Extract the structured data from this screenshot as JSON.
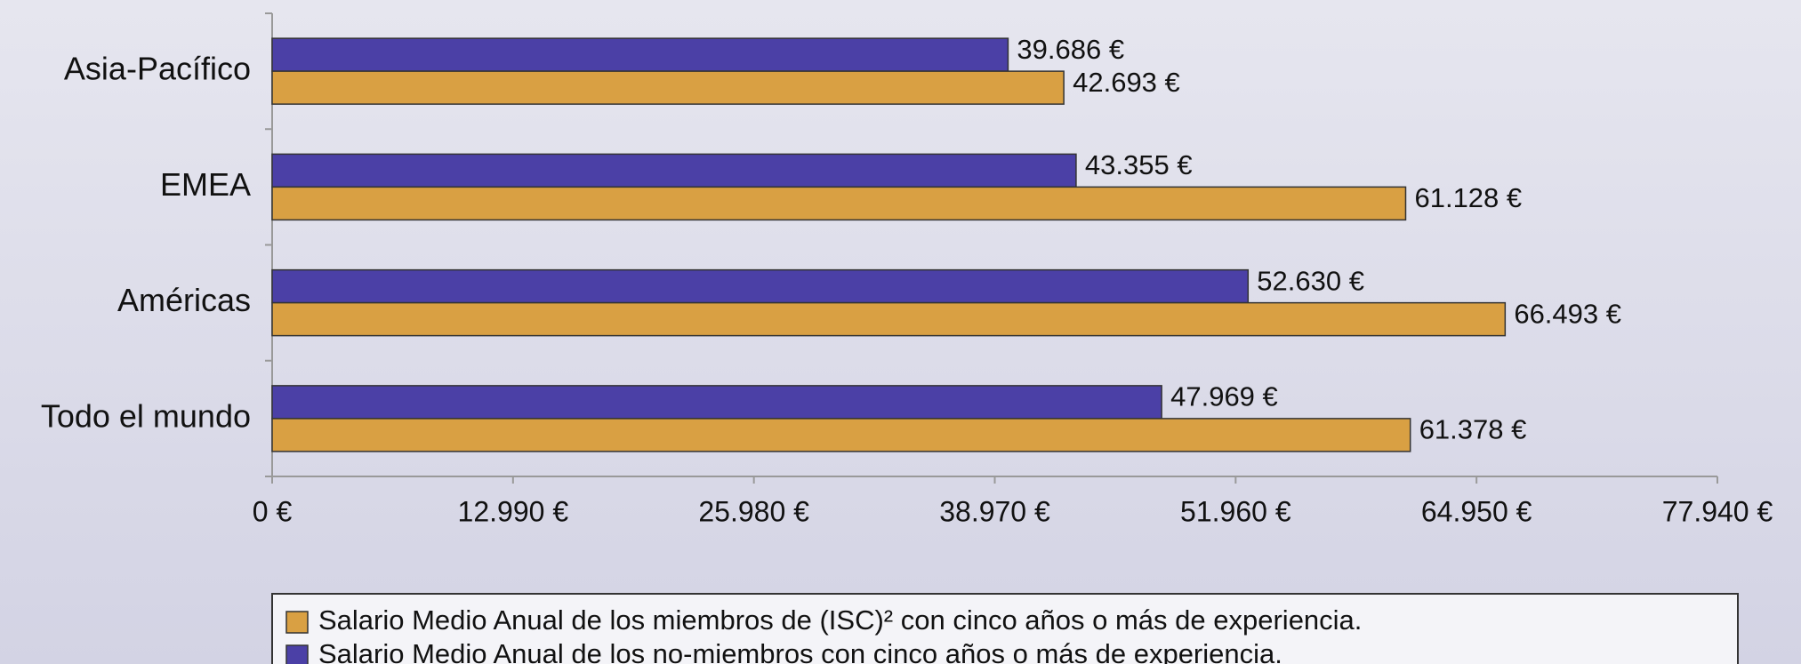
{
  "chart_data": {
    "type": "bar",
    "orientation": "horizontal",
    "categories": [
      "Asia-Pacífico",
      "EMEA",
      "Américas",
      "Todo el mundo"
    ],
    "series": [
      {
        "name": "Salario Medio Anual de los miembros de (ISC)² con cinco años o más de experiencia.",
        "color": "#d9a043",
        "values": [
          42693,
          61128,
          66493,
          61378
        ],
        "value_labels": [
          "42.693 €",
          "61.128 €",
          "66.493 €",
          "61.378 €"
        ]
      },
      {
        "name": "Salario Medio Anual de los no-miembros con cinco años o más de experiencia.",
        "color": "#4b40a6",
        "values": [
          39686,
          43355,
          52630,
          47969
        ],
        "value_labels": [
          "39.686 €",
          "43.355 €",
          "52.630 €",
          "47.969 €"
        ]
      }
    ],
    "xlim": [
      0,
      77940
    ],
    "xticks": [
      {
        "value": 0,
        "label": "0 €"
      },
      {
        "value": 12990,
        "label": "12.990 €"
      },
      {
        "value": 25980,
        "label": "25.980 €"
      },
      {
        "value": 38970,
        "label": "38.970 €"
      },
      {
        "value": 51960,
        "label": "51.960 €"
      },
      {
        "value": 64950,
        "label": "64.950 €"
      },
      {
        "value": 77940,
        "label": "77.940 €"
      }
    ],
    "legend": "bottom"
  }
}
